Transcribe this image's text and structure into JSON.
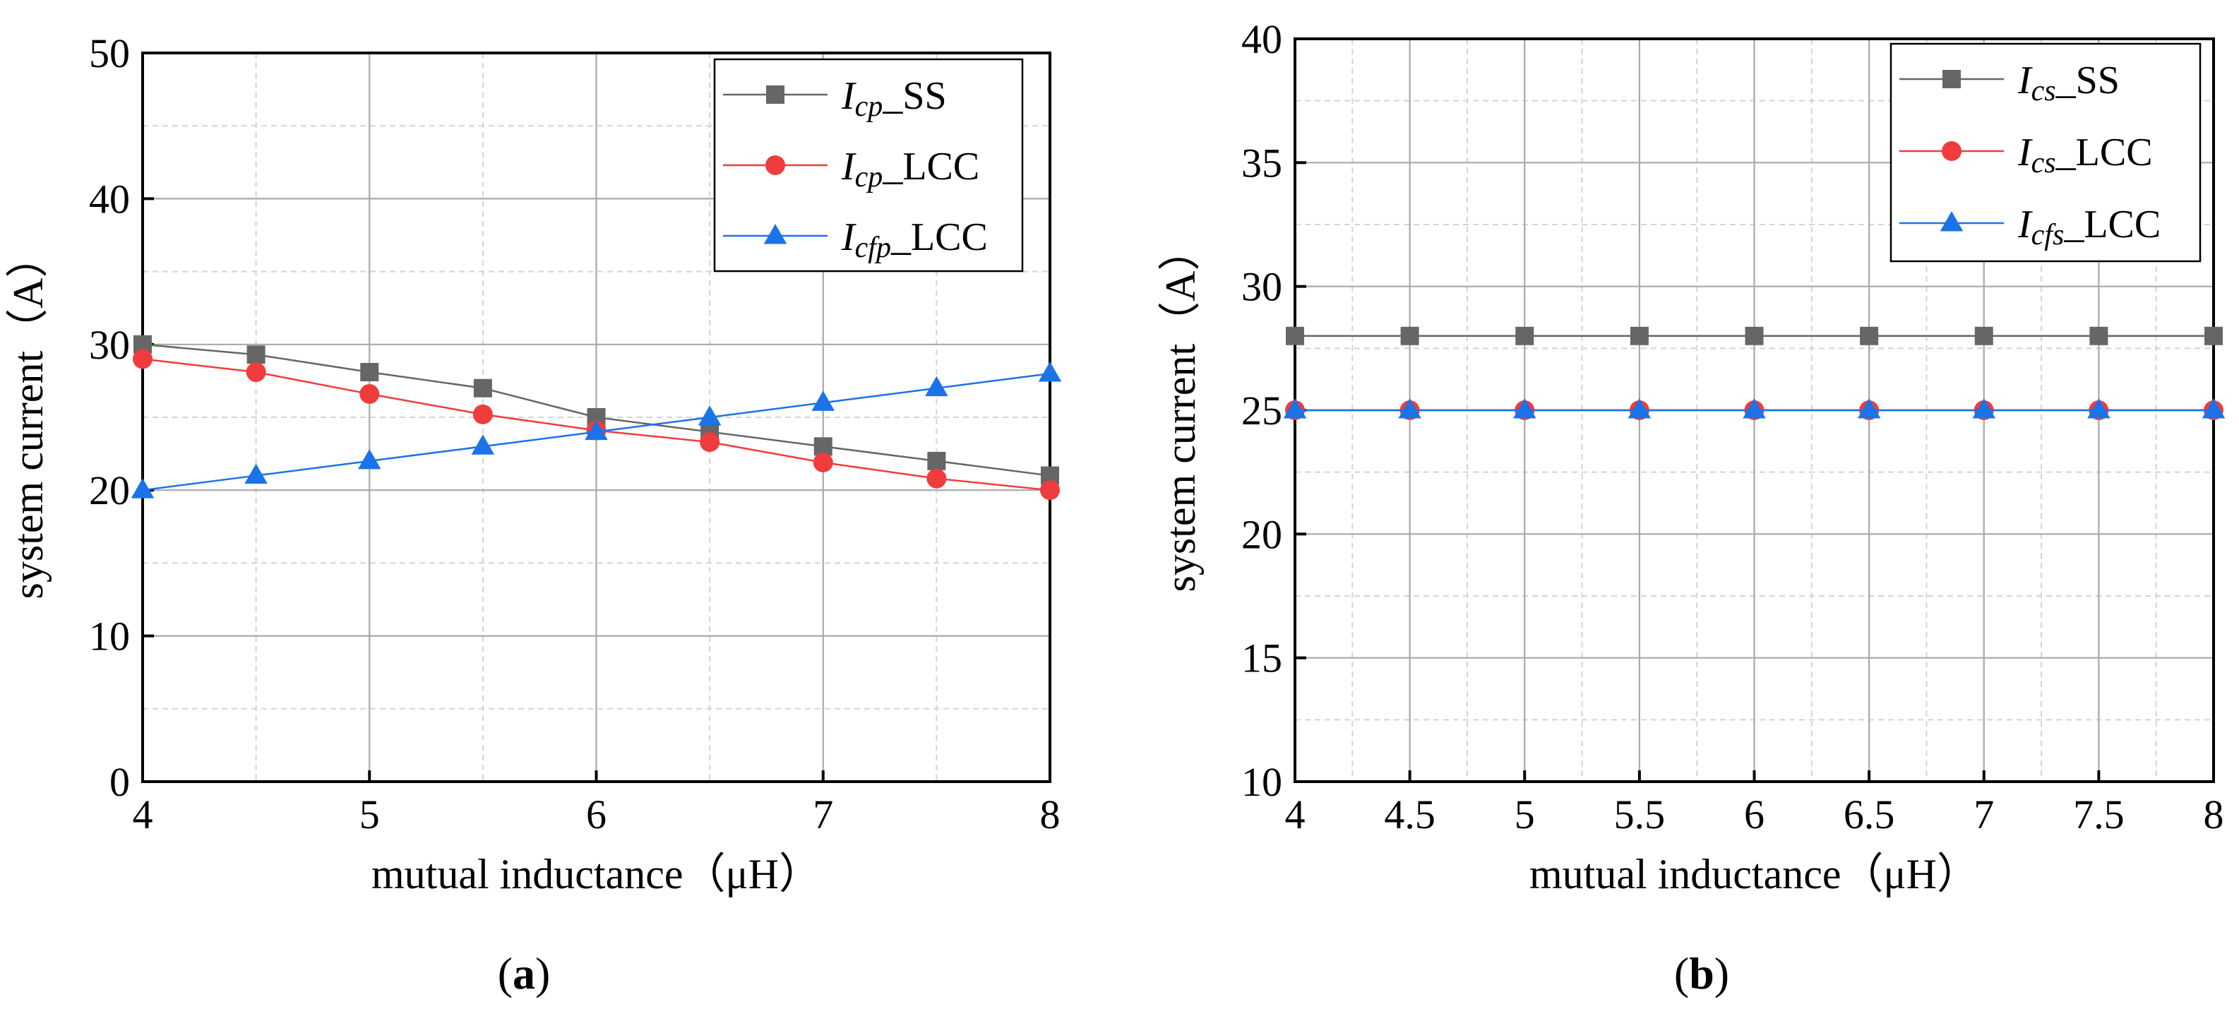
{
  "chart_data": [
    {
      "type": "line",
      "panel_label": "a",
      "xlabel": "mutual inductance（μH）",
      "ylabel": "system current（A）",
      "xlim": [
        4,
        8
      ],
      "ylim": [
        0,
        50
      ],
      "xticks": [
        "4",
        "5",
        "6",
        "7",
        "8"
      ],
      "yticks": [
        "0",
        "10",
        "20",
        "30",
        "40",
        "50"
      ],
      "grid": true,
      "legend_position": "top-right",
      "x": [
        4,
        4.5,
        5,
        5.5,
        6,
        6.5,
        7,
        7.5,
        8
      ],
      "series": [
        {
          "name_main": "I",
          "name_sub": "cp",
          "name_suffix": "_SS",
          "marker": "square",
          "color": "#666666",
          "values": [
            30,
            29.3,
            28.1,
            27,
            25,
            24,
            23,
            22,
            21
          ]
        },
        {
          "name_main": "I",
          "name_sub": "cp",
          "name_suffix": "_LCC",
          "marker": "circle",
          "color": "#f03c3c",
          "values": [
            29,
            28.1,
            26.6,
            25.2,
            24.1,
            23.3,
            21.9,
            20.8,
            20
          ]
        },
        {
          "name_main": "I",
          "name_sub": "cfp",
          "name_suffix": "_LCC",
          "marker": "triangle",
          "color": "#1a73e8",
          "values": [
            20,
            21,
            22,
            23,
            24,
            25,
            26,
            27,
            28
          ]
        }
      ]
    },
    {
      "type": "line",
      "panel_label": "b",
      "xlabel": "mutual inductance（μH）",
      "ylabel": "system current（A）",
      "xlim": [
        4,
        8
      ],
      "ylim": [
        10,
        40
      ],
      "xticks": [
        "4",
        "4.5",
        "5",
        "5.5",
        "6",
        "6.5",
        "7",
        "7.5",
        "8"
      ],
      "yticks": [
        "10",
        "15",
        "20",
        "25",
        "30",
        "35",
        "40"
      ],
      "grid": true,
      "legend_position": "top-right",
      "x": [
        4,
        4.5,
        5,
        5.5,
        6,
        6.5,
        7,
        7.5,
        8
      ],
      "series": [
        {
          "name_main": "I",
          "name_sub": "cs",
          "name_suffix": "_SS",
          "marker": "square",
          "color": "#666666",
          "values": [
            28,
            28,
            28,
            28,
            28,
            28,
            28,
            28,
            28
          ]
        },
        {
          "name_main": "I",
          "name_sub": "cs",
          "name_suffix": "_LCC",
          "marker": "circle",
          "color": "#f03c3c",
          "values": [
            25,
            25,
            25,
            25,
            25,
            25,
            25,
            25,
            25
          ]
        },
        {
          "name_main": "I",
          "name_sub": "cfs",
          "name_suffix": "_LCC",
          "marker": "triangle",
          "color": "#1a73e8",
          "values": [
            25,
            25,
            25,
            25,
            25,
            25,
            25,
            25,
            25
          ]
        }
      ]
    }
  ]
}
